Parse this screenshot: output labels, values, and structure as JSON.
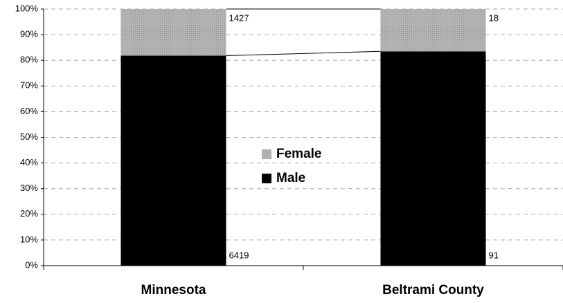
{
  "chart_data": {
    "type": "bar",
    "stacking": "percent",
    "categories": [
      "Minnesota",
      "Beltrami County"
    ],
    "series": [
      {
        "name": "Male",
        "color": "#000000",
        "values": [
          6419,
          91
        ]
      },
      {
        "name": "Female",
        "color": "#a6a6a6",
        "values": [
          1427,
          18
        ]
      }
    ],
    "ylim": [
      0,
      100
    ],
    "yticks": [
      {
        "value": 0,
        "label": "0%"
      },
      {
        "value": 10,
        "label": "10%"
      },
      {
        "value": 20,
        "label": "20%"
      },
      {
        "value": 30,
        "label": "30%"
      },
      {
        "value": 40,
        "label": "40%"
      },
      {
        "value": 50,
        "label": "50%"
      },
      {
        "value": 60,
        "label": "60%"
      },
      {
        "value": 70,
        "label": "70%"
      },
      {
        "value": 80,
        "label": "80%"
      },
      {
        "value": 90,
        "label": "90%"
      },
      {
        "value": 100,
        "label": "100%"
      }
    ],
    "grid": true,
    "series_lines": true
  }
}
